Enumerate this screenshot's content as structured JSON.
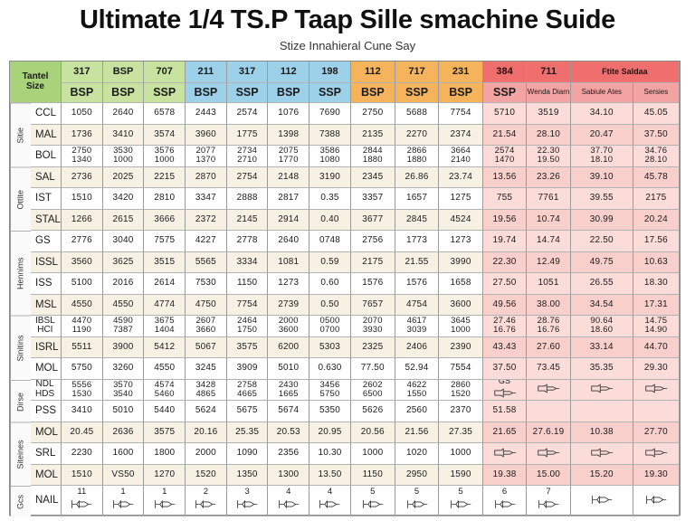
{
  "title": "Ultimate 1/4 TS.P Taap Sille smachine Suide",
  "subtitle": "Stize Innahieral Cune Say",
  "corner_label": [
    "Tantel",
    "Size"
  ],
  "header_top": [
    "317",
    "BSP",
    "707",
    "211",
    "317",
    "112",
    "198",
    "112",
    "717",
    "231",
    "384",
    "711",
    "Ftite Saldaa"
  ],
  "header_bottom": [
    "BSP",
    "BSP",
    "SSP",
    "BSP",
    "SSP",
    "BSP",
    "SSP",
    "BSP",
    "SSP",
    "BSP",
    "SSP",
    "Wenda Diarn",
    "Sabiule Ates",
    "Sersies"
  ],
  "groups": [
    "Sitie",
    "Ottite",
    "Hennims",
    "Sinitins",
    "Dirse",
    "Siteines",
    "Gcs"
  ],
  "rows": [
    {
      "label": "CCL",
      "cells": [
        "1050",
        "2640",
        "6578",
        "2443",
        "2574",
        "1076",
        "7690",
        "2750",
        "5688",
        "7754",
        "5710",
        "3519",
        "34.10",
        "45.05"
      ],
      "tint": false
    },
    {
      "label": "MAL",
      "cells": [
        "1736",
        "3410",
        "3574",
        "3960",
        "1775",
        "1398",
        "7388",
        "2135",
        "2270",
        "2374",
        "21.54",
        "28.10",
        "20.47",
        "37.50"
      ],
      "tint": true
    },
    {
      "label": "BOL",
      "cells": [
        "2750\n1340",
        "3530\n1000",
        "3576\n1000",
        "2077\n1370",
        "2734\n2710",
        "2075\n1770",
        "3586\n1080",
        "2844\n1880",
        "2866\n1880",
        "3664\n2140",
        "2574\n1470",
        "22.30\n19.50",
        "37.70\n18.10",
        "34.76\n28.10"
      ],
      "tint": false
    },
    {
      "label": "SAL",
      "cells": [
        "2736",
        "2025",
        "2215",
        "2870",
        "2754",
        "2148",
        "3190",
        "2345",
        "26.86",
        "23.74",
        "13.56",
        "23.26",
        "39.10",
        "45.78"
      ],
      "tint": true
    },
    {
      "label": "IST",
      "cells": [
        "1510",
        "3420",
        "2810",
        "3347",
        "2888",
        "2817",
        "0.35",
        "3357",
        "1657",
        "1275",
        "755",
        "7761",
        "39.55",
        "2175"
      ],
      "tint": false
    },
    {
      "label": "STAL",
      "cells": [
        "1266",
        "2615",
        "3666",
        "2372",
        "2145",
        "2914",
        "0.40",
        "3677",
        "2845",
        "4524",
        "19.56",
        "10.74",
        "30.99",
        "20.24"
      ],
      "tint": true
    },
    {
      "label": "GS",
      "cells": [
        "2776",
        "3040",
        "7575",
        "4227",
        "2778",
        "2640",
        "0748",
        "2756",
        "1773",
        "1273",
        "19.74",
        "14.74",
        "22.50",
        "17.56"
      ],
      "tint": false
    },
    {
      "label": "ISSL",
      "cells": [
        "3560",
        "3625",
        "3515",
        "5565",
        "3334",
        "1081",
        "0.59",
        "2175",
        "21.55",
        "3990",
        "22.30",
        "12.49",
        "49.75",
        "10.63"
      ],
      "tint": true
    },
    {
      "label": "ISS",
      "cells": [
        "5100",
        "2016",
        "2614",
        "7530",
        "1150",
        "1273",
        "0.60",
        "1576",
        "1576",
        "1658",
        "27.50",
        "1051",
        "26.55",
        "18.30"
      ],
      "tint": false
    },
    {
      "label": "MSL",
      "cells": [
        "4550",
        "4550",
        "4774",
        "4750",
        "7754",
        "2739",
        "0.50",
        "7657",
        "4754",
        "3600",
        "49.56",
        "38.00",
        "34.54",
        "17.31"
      ],
      "tint": true
    },
    {
      "label": "IBSL\nHCI",
      "cells": [
        "4470\n1190",
        "4590\n7387",
        "3675\n1404",
        "2607\n3660",
        "2464\n1750",
        "2000\n3600",
        "0500\n0700",
        "2070\n3930",
        "4617\n3039",
        "3645\n1000",
        "27.46\n16.76",
        "28.76\n16.76",
        "90.64\n18.60",
        "14.75\n14.90"
      ],
      "tint": false
    },
    {
      "label": "ISRL",
      "cells": [
        "5511",
        "3900",
        "5412",
        "5067",
        "3575",
        "6200",
        "5303",
        "2325",
        "2406",
        "2390",
        "43.43",
        "27.60",
        "33.14",
        "44.70"
      ],
      "tint": true
    },
    {
      "label": "MOL",
      "cells": [
        "5750",
        "3260",
        "4550",
        "3245",
        "3909",
        "5010",
        "0.630",
        "77.50",
        "52.94",
        "7554",
        "37.50",
        "73.45",
        "35.35",
        "29.30"
      ],
      "tint": false
    },
    {
      "label": "NDL\nHDS",
      "cells": [
        "5556\n1530",
        "3570\n3540",
        "4574\n5460",
        "3428\n4865",
        "2758\n4665",
        "2430\n1665",
        "3456\n5750",
        "2602\n6500",
        "4622\n1550",
        "2860\n1520",
        "GS\n[plug]",
        "[plug]",
        "[plug]",
        "[plug]"
      ],
      "tint": false
    },
    {
      "label": "PSS",
      "cells": [
        "3410",
        "5010",
        "5440",
        "5624",
        "5675",
        "5674",
        "5350",
        "5626",
        "2560",
        "2370",
        "51.58",
        "",
        "",
        ""
      ],
      "tint": false
    },
    {
      "label": "MOL",
      "cells": [
        "20.45",
        "2636",
        "3575",
        "20.16",
        "25.35",
        "20.53",
        "20.95",
        "20.56",
        "21.56",
        "27.35",
        "21.65",
        "27.6.19",
        "10.38",
        "27.70"
      ],
      "tint": true
    },
    {
      "label": "SRL",
      "cells": [
        "2230",
        "1600",
        "1800",
        "2000",
        "1090",
        "2356",
        "10.30",
        "1000",
        "1020",
        "1000",
        "[plug]",
        "[plug]",
        "[plug]",
        "[plug]"
      ],
      "tint": false
    },
    {
      "label": "MOL",
      "cells": [
        "1510",
        "VS50",
        "1270",
        "1520",
        "1350",
        "1300",
        "13.50",
        "1150",
        "2950",
        "1590",
        "19.38",
        "15.00",
        "15.20",
        "19.30"
      ],
      "tint": true
    }
  ],
  "bottom_label": "NAIL",
  "bottom_numbers": [
    "11",
    "1",
    "1",
    "2",
    "3",
    "4",
    "4",
    "5",
    "5",
    "5",
    "6",
    "7",
    "",
    ""
  ],
  "colors": {
    "green": "#c8e3a0",
    "blue": "#9dd1ea",
    "orange": "#f5b45c",
    "red": "#ef6f6f",
    "pink": "#fbdcd9"
  }
}
